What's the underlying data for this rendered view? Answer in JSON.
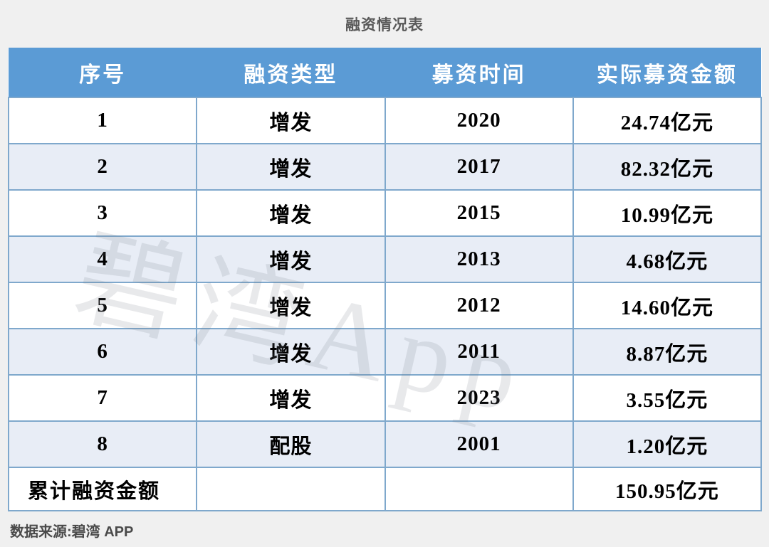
{
  "title": "融资情况表",
  "watermark": {
    "text": "碧湾App"
  },
  "source": "数据来源:碧湾 APP",
  "chart_data": {
    "type": "table",
    "title": "融资情况表",
    "columns": [
      "序号",
      "融资类型",
      "募资时间",
      "实际募资金额"
    ],
    "rows": [
      [
        "1",
        "增发",
        "2020",
        "24.74亿元"
      ],
      [
        "2",
        "增发",
        "2017",
        "82.32亿元"
      ],
      [
        "3",
        "增发",
        "2015",
        "10.99亿元"
      ],
      [
        "4",
        "增发",
        "2013",
        "4.68亿元"
      ],
      [
        "5",
        "增发",
        "2012",
        "14.60亿元"
      ],
      [
        "6",
        "增发",
        "2011",
        "8.87亿元"
      ],
      [
        "7",
        "增发",
        "2023",
        "3.55亿元"
      ],
      [
        "8",
        "配股",
        "2001",
        "1.20亿元"
      ]
    ],
    "total": {
      "label": "累计融资金额",
      "type": "",
      "time": "",
      "value": "150.95亿元"
    },
    "amounts_yi_yuan": [
      24.74,
      82.32,
      10.99,
      4.68,
      14.6,
      8.87,
      3.55,
      1.2
    ],
    "total_amount_yi_yuan": 150.95
  },
  "colors": {
    "header_bg": "#5B9BD5",
    "header_text": "#FFFFFF",
    "row_bg": "#FFFFFF",
    "row_alt_bg": "#E8EDF6",
    "border": "#7FA8CC",
    "page_bg": "#F0F0F0",
    "title_text": "#595959",
    "source_text": "#4A4A4A",
    "cell_text": "#000000"
  }
}
